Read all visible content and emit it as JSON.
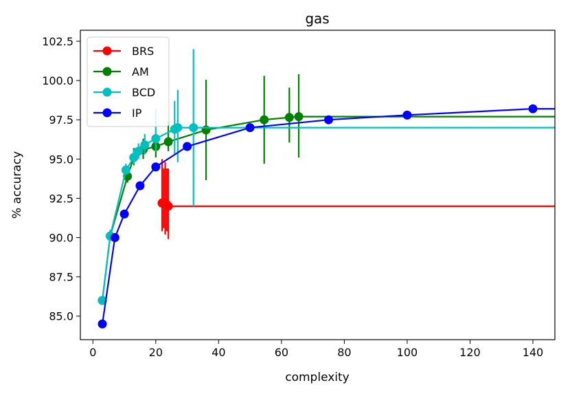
{
  "chart_data": {
    "type": "line",
    "title": "gas",
    "xlabel": "complexity",
    "ylabel": "% accuracy",
    "xlim": [
      -4,
      147
    ],
    "ylim": [
      83.5,
      103.2
    ],
    "xticks": [
      0,
      20,
      40,
      60,
      80,
      100,
      120,
      140
    ],
    "xtick_labels": [
      "0",
      "20",
      "40",
      "60",
      "80",
      "100",
      "120",
      "140"
    ],
    "yticks": [
      85.0,
      87.5,
      90.0,
      92.5,
      95.0,
      97.5,
      100.0,
      102.5
    ],
    "ytick_labels": [
      "85.0",
      "87.5",
      "90.0",
      "92.5",
      "95.0",
      "97.5",
      "100.0",
      "102.5"
    ],
    "legend_position": "top-left",
    "series": [
      {
        "name": "BRS",
        "color": "#ff0000",
        "x": [
          22.0,
          22.5,
          23.0,
          23.5,
          24.0
        ],
        "y": [
          92.2,
          92.2,
          92.2,
          92.1,
          92.0
        ],
        "err_low": [
          1.8,
          1.6,
          2.0,
          1.7,
          2.1
        ],
        "err_high": [
          2.8,
          2.2,
          2.6,
          2.3,
          2.4
        ],
        "extend_to": 147
      },
      {
        "name": "AM",
        "color": "#008000",
        "x": [
          3,
          5.5,
          11,
          13,
          16,
          20,
          24,
          36,
          54.5,
          62.5,
          65.5
        ],
        "y": [
          86.0,
          90.1,
          93.9,
          95.1,
          95.6,
          95.8,
          96.1,
          96.85,
          97.5,
          97.65,
          97.7
        ],
        "err_low": [
          0.2,
          0.3,
          0.4,
          0.5,
          0.6,
          0.7,
          0.6,
          3.2,
          2.8,
          1.6,
          2.6
        ],
        "err_high": [
          0.2,
          0.3,
          0.4,
          0.6,
          0.7,
          0.8,
          1.3,
          3.2,
          2.8,
          1.9,
          2.7
        ],
        "extend_to": 147
      },
      {
        "name": "BCD",
        "color": "#00bfbf",
        "x": [
          3,
          5.5,
          10.5,
          13,
          14.5,
          16.5,
          20,
          26,
          27,
          32
        ],
        "y": [
          86.0,
          90.1,
          94.3,
          95.1,
          95.5,
          95.9,
          96.3,
          96.9,
          97.0,
          97.0
        ],
        "err_low": [
          0.2,
          0.3,
          0.3,
          0.4,
          0.5,
          0.6,
          0.8,
          1.6,
          2.2,
          5.0
        ],
        "err_high": [
          0.2,
          0.4,
          0.4,
          0.5,
          0.5,
          0.7,
          1.9,
          1.8,
          2.4,
          5.0
        ],
        "extend_to": 147
      },
      {
        "name": "IP",
        "color": "#0000ff",
        "x": [
          3,
          7,
          10,
          15,
          20,
          30,
          50,
          75,
          100,
          140
        ],
        "y": [
          84.5,
          90.0,
          91.5,
          93.3,
          94.5,
          95.8,
          97.0,
          97.5,
          97.8,
          98.2
        ],
        "extend_to": 147
      }
    ]
  }
}
